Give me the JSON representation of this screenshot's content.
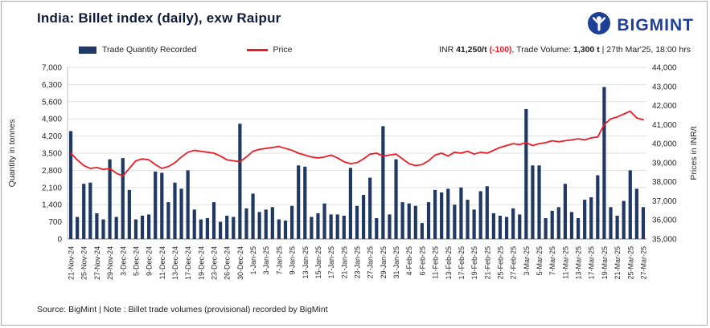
{
  "header": {
    "title": "India: Billet index (daily), exw Raipur",
    "brand": "BIGMINT",
    "brand_color": "#1e3f97"
  },
  "legend": [
    {
      "label": "Trade Quantity Recorded",
      "color": "#1F3864",
      "type": "bar"
    },
    {
      "label": "Price",
      "color": "#ED1C24",
      "type": "line"
    }
  ],
  "info": {
    "currency": "INR ",
    "price": "41,250/t ",
    "change": "(-100)",
    "sep1": ", Trade Volume: ",
    "volume": "1,300 t",
    "sep2": " | ",
    "timestamp": "27th Mar'25, 18:00 hrs",
    "change_color": "#ED1C24"
  },
  "footer": {
    "text": "Source: BigMint | Note : Billet trade volumes (provisional) recorded by BigMint"
  },
  "chart_data": {
    "type": "bar",
    "title": "India: Billet index (daily), exw Raipur",
    "grid": true,
    "legend_position": "top",
    "label_every": 2,
    "x_labels": [
      "21-Nov-24",
      "25-Nov-24",
      "27-Nov-24",
      "29-Nov-24",
      "3-Dec-24",
      "5-Dec-24",
      "9-Dec-24",
      "11-Dec-24",
      "13-Dec-24",
      "17-Dec-24",
      "19-Dec-24",
      "23-Dec-24",
      "26-Dec-24",
      "30-Dec-24",
      "1-Jan-25",
      "3-Jan-25",
      "7-Jan-25",
      "9-Jan-25",
      "13-Jan-25",
      "15-Jan-25",
      "17-Jan-25",
      "21-Jan-25",
      "23-Jan-25",
      "27-Jan-25",
      "29-Jan-25",
      "31-Jan-25",
      "4-Feb-25",
      "6-Feb-25",
      "11-Feb-25",
      "13-Feb-25",
      "17-Feb-25",
      "19-Feb-25",
      "21-Feb-25",
      "25-Feb-25",
      "27-Feb-25",
      "3-Mar-25",
      "5-Mar-25",
      "7-Mar-25",
      "11-Mar-25",
      "13-Mar-25",
      "17-Mar-25",
      "19-Mar-25",
      "21-Mar-25",
      "25-Mar-25",
      "27-Mar-25"
    ],
    "series": [
      {
        "name": "Trade Quantity Recorded",
        "type": "bar",
        "axis": "left",
        "color": "#1F3864",
        "values": [
          4400,
          900,
          2250,
          2300,
          1050,
          800,
          3250,
          900,
          3300,
          2000,
          800,
          950,
          1000,
          2750,
          2700,
          1500,
          2300,
          2050,
          2800,
          1200,
          800,
          850,
          1500,
          700,
          950,
          900,
          4700,
          1250,
          1850,
          1100,
          1200,
          1300,
          800,
          750,
          1350,
          3000,
          2950,
          900,
          1050,
          1450,
          1000,
          1000,
          950,
          2900,
          1350,
          1800,
          2500,
          850,
          4600,
          1000,
          3250,
          1500,
          1450,
          1350,
          650,
          1500,
          2000,
          1900,
          2050,
          1400,
          2100,
          1600,
          1200,
          1950,
          2150,
          1050,
          950,
          900,
          1250,
          1000,
          5300,
          3000,
          3000,
          850,
          1150,
          1300,
          2250,
          1100,
          850,
          1600,
          1700,
          2600,
          6200,
          1300,
          950,
          1550,
          2800,
          2050,
          1300
        ]
      },
      {
        "name": "Price",
        "type": "line",
        "axis": "right",
        "color": "#ED1C24",
        "values": [
          39500,
          39150,
          38850,
          38700,
          38750,
          38650,
          38700,
          38450,
          38300,
          38700,
          39100,
          39200,
          39150,
          38900,
          38700,
          38800,
          39000,
          39300,
          39550,
          39650,
          39600,
          39550,
          39500,
          39350,
          39150,
          39100,
          39050,
          39300,
          39600,
          39700,
          39750,
          39800,
          39850,
          39750,
          39650,
          39500,
          39400,
          39300,
          39250,
          39300,
          39400,
          39250,
          39050,
          38950,
          39000,
          39200,
          39450,
          39500,
          39350,
          39400,
          39450,
          39200,
          38950,
          38850,
          38900,
          39100,
          39400,
          39500,
          39350,
          39550,
          39500,
          39600,
          39450,
          39550,
          39500,
          39650,
          39800,
          39900,
          40000,
          39950,
          40050,
          39900,
          40000,
          40050,
          40150,
          40100,
          40150,
          40200,
          40250,
          40200,
          40300,
          40350,
          41000,
          41300,
          41400,
          41550,
          41700,
          41350,
          41250
        ]
      }
    ],
    "left_axis": {
      "label": "Quantity in tonnes",
      "min": 0,
      "max": 7000,
      "step": 700,
      "tick_labels": [
        "0",
        "700",
        "1,400",
        "2,100",
        "2,800",
        "3,500",
        "4,200",
        "4,900",
        "5,600",
        "6,300",
        "7,000"
      ]
    },
    "right_axis": {
      "label": "Prices in INR/t",
      "min": 35000,
      "max": 44000,
      "step": 1000,
      "tick_labels": [
        "35,000",
        "36,000",
        "37,000",
        "38,000",
        "39,000",
        "40,000",
        "41,000",
        "42,000",
        "43,000",
        "44,000"
      ]
    }
  }
}
